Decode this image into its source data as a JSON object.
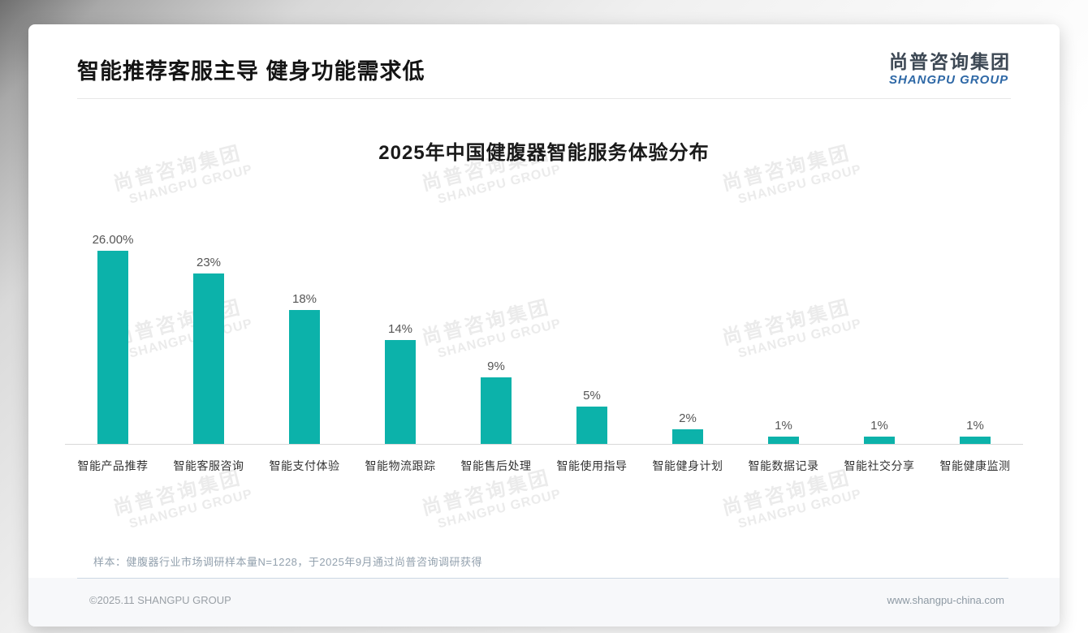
{
  "page": {
    "title": "智能推荐客服主导 健身功能需求低",
    "logo": {
      "cn": "尚普咨询集团",
      "en": "SHANGPU GROUP"
    },
    "note": "样本：健腹器行业市场调研样本量N=1228，于2025年9月通过尚普咨询调研获得",
    "footer": {
      "left": "©2025.11 SHANGPU GROUP",
      "right": "www.shangpu-china.com"
    },
    "watermark": {
      "line1": "尚普咨询集团",
      "line2": "SHANGPU GROUP"
    }
  },
  "chart_data": {
    "type": "bar",
    "title": "2025年中国健腹器智能服务体验分布",
    "categories": [
      "智能产品推荐",
      "智能客服咨询",
      "智能支付体验",
      "智能物流跟踪",
      "智能售后处理",
      "智能使用指导",
      "智能健身计划",
      "智能数据记录",
      "智能社交分享",
      "智能健康监测"
    ],
    "values": [
      26,
      23,
      18,
      14,
      9,
      5,
      2,
      1,
      1,
      1
    ],
    "value_labels": [
      "26.00%",
      "23%",
      "18%",
      "14%",
      "9%",
      "5%",
      "2%",
      "1%",
      "1%",
      "1%"
    ],
    "unit": "%",
    "bar_color": "#0cb2aa",
    "value_label_color": "#555555",
    "ylim": [
      0,
      30
    ],
    "grid": false,
    "legend": false,
    "xlabel": "",
    "ylabel": ""
  }
}
